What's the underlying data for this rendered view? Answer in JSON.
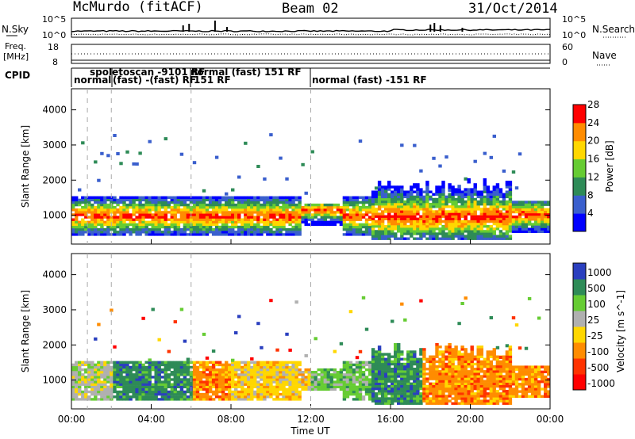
{
  "header": {
    "station": "McMurdo (fitACF)",
    "beam": "Beam 02",
    "date": "31/Oct/2014"
  },
  "noise_panel": {
    "left_label": "N.Sky",
    "left_ticks": [
      "10^5",
      "10^0"
    ],
    "right_label": "N.Search",
    "right_ticks": [
      "10^5",
      "10^0"
    ]
  },
  "freq_panel": {
    "left_label_line1": "Freq.",
    "left_label_line2": "[MHz]",
    "left_ticks": [
      "18",
      "8"
    ],
    "right_label": "Nave",
    "right_ticks": [
      "60",
      "0"
    ]
  },
  "cpid": {
    "label": "CPID",
    "segments": [
      {
        "text": "normal",
        "row": 1
      },
      {
        "text": "spoletoscan -9101 RF",
        "row": 0
      },
      {
        "text": "(fast) -(fast) RF",
        "row": 1
      },
      {
        "text": "normal (fast) 151 RF",
        "row": 0
      },
      {
        "text": "151 RF",
        "row": 1
      },
      {
        "text": "normal (fast) -151 RF",
        "row": 1
      }
    ]
  },
  "chart_data": [
    {
      "type": "heatmap",
      "name": "power",
      "xlabel": "",
      "ylabel": "Slant Range [km]",
      "ylim": [
        180,
        4600
      ],
      "yticks": [
        "1000",
        "2000",
        "3000",
        "4000"
      ],
      "colorbar_label": "Power [dB]",
      "colorbar_ticks": [
        "4",
        "8",
        "12",
        "16",
        "20",
        "24",
        "28"
      ],
      "colors": [
        "#0000ff",
        "#3a5fcd",
        "#2e8b57",
        "#66cc33",
        "#ffd700",
        "#ff8c00",
        "#ff0000"
      ]
    },
    {
      "type": "heatmap",
      "name": "velocity",
      "xlabel": "Time UT",
      "ylabel": "Slant Range [km]",
      "ylim": [
        180,
        4600
      ],
      "yticks": [
        "1000",
        "2000",
        "3000",
        "4000"
      ],
      "xticks": [
        "00:00",
        "04:00",
        "08:00",
        "12:00",
        "16:00",
        "20:00",
        "00:00"
      ],
      "colorbar_label": "Velocity [m s^-1]",
      "colorbar_ticks": [
        "1000",
        "500",
        "100",
        "25",
        "-25",
        "-100",
        "-500",
        "-1000"
      ],
      "colors": [
        "#2a3fbf",
        "#2e8b57",
        "#66cc33",
        "#b0b0b0",
        "#ffd700",
        "#ff8c00",
        "#ff3300",
        "#ff0000"
      ]
    }
  ]
}
